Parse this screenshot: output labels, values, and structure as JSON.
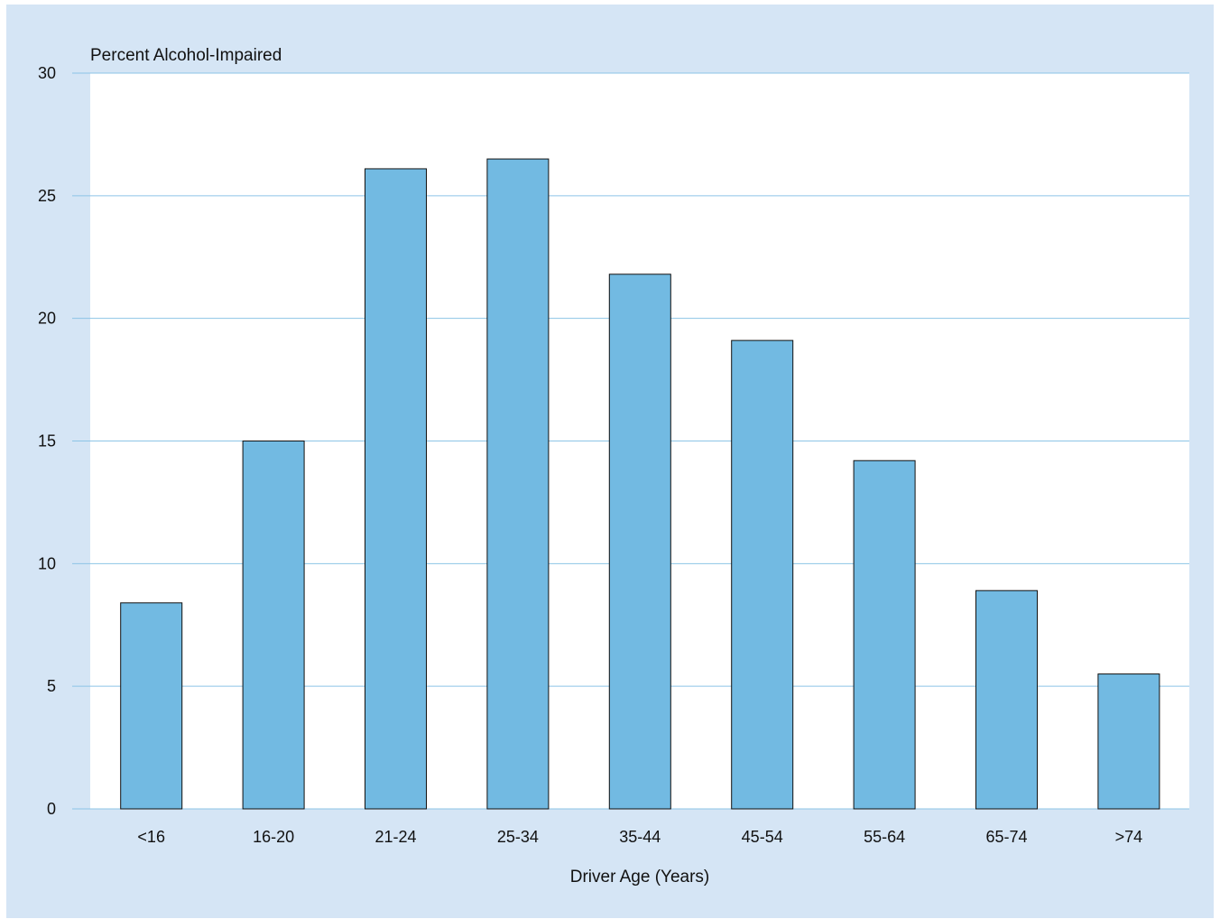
{
  "chart_data": {
    "type": "bar",
    "categories": [
      "<16",
      "16-20",
      "21-24",
      "25-34",
      "35-44",
      "45-54",
      "55-64",
      "65-74",
      ">74"
    ],
    "values": [
      8.4,
      15.0,
      26.1,
      26.5,
      21.8,
      19.1,
      14.2,
      8.9,
      5.5
    ],
    "ylabel": "Percent Alcohol-Impaired",
    "xlabel": "Driver Age (Years)",
    "ylim": [
      0,
      30
    ],
    "yticks": [
      "0",
      "5",
      "10",
      "15",
      "20",
      "25",
      "30"
    ],
    "grid": true,
    "colors": {
      "panel": "#d5e5f5",
      "plot": "#ffffff",
      "bar": "#72bae2",
      "bar_outline": "#111111",
      "grid": "#8cc4e6"
    }
  }
}
